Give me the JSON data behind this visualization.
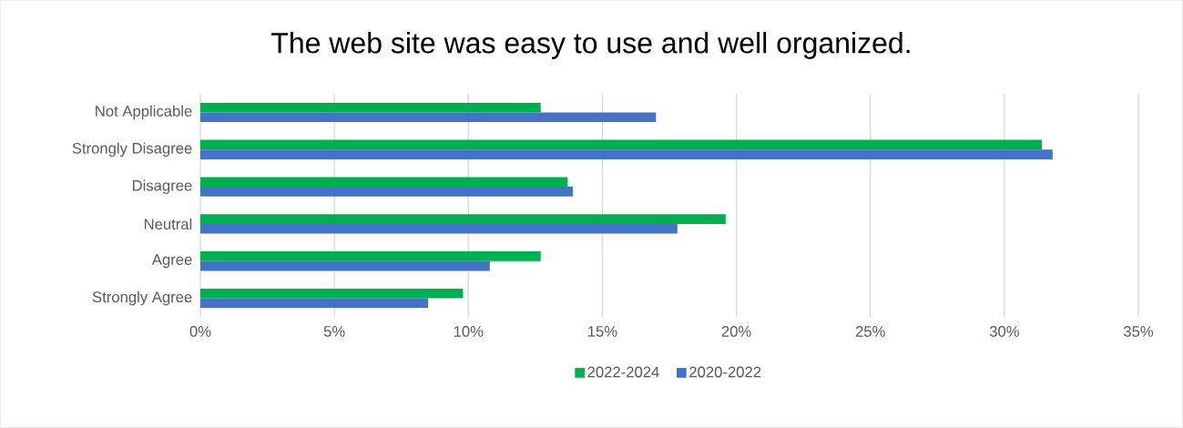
{
  "chart_data": {
    "type": "bar",
    "orientation": "horizontal",
    "title": "The web site was easy to use and well organized.",
    "categories": [
      "Not Applicable",
      "Strongly Disagree",
      "Disagree",
      "Neutral",
      "Agree",
      "Strongly Agree"
    ],
    "series": [
      {
        "name": "2022-2024",
        "color": "#00b050",
        "values": [
          12.7,
          31.4,
          13.7,
          19.6,
          12.7,
          9.8
        ]
      },
      {
        "name": "2020-2022",
        "color": "#4472c4",
        "values": [
          17.0,
          31.8,
          13.9,
          17.8,
          10.8,
          8.5
        ]
      }
    ],
    "xlim": [
      0,
      35
    ],
    "xticks": [
      {
        "value": 0,
        "label": "0%"
      },
      {
        "value": 5,
        "label": "5%"
      },
      {
        "value": 10,
        "label": "10%"
      },
      {
        "value": 15,
        "label": "15%"
      },
      {
        "value": 20,
        "label": "20%"
      },
      {
        "value": 25,
        "label": "25%"
      },
      {
        "value": 30,
        "label": "30%"
      },
      {
        "value": 35,
        "label": "35%"
      }
    ],
    "grid": "x",
    "legend": "bottom"
  }
}
